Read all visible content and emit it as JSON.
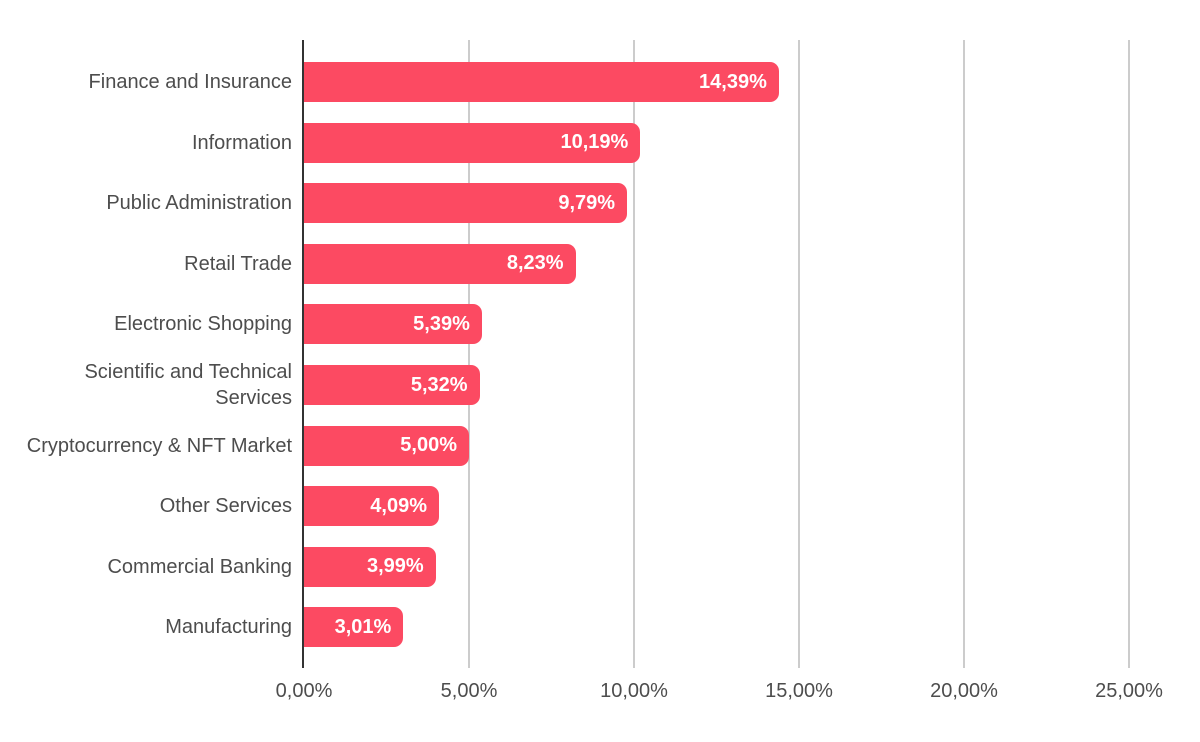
{
  "chart_data": {
    "type": "bar",
    "orientation": "horizontal",
    "title": "",
    "categories": [
      "Finance and Insurance",
      "Information",
      "Public Administration",
      "Retail Trade",
      "Electronic Shopping",
      "Scientific and Technical Services",
      "Cryptocurrency & NFT Market",
      "Other Services",
      "Commercial Banking",
      "Manufacturing"
    ],
    "values": [
      14.39,
      10.19,
      9.79,
      8.23,
      5.39,
      5.32,
      5.0,
      4.09,
      3.99,
      3.01
    ],
    "value_labels": [
      "14,39%",
      "10,19%",
      "9,79%",
      "8,23%",
      "5,39%",
      "5,32%",
      "5,00%",
      "4,09%",
      "3,99%",
      "3,01%"
    ],
    "x_axis": {
      "tick_values": [
        0,
        5,
        10,
        15,
        20,
        25
      ],
      "tick_labels": [
        "0,00%",
        "5,00%",
        "10,00%",
        "15,00%",
        "20,00%",
        "25,00%"
      ],
      "range": [
        0,
        25
      ]
    },
    "legend": "none",
    "grid": "vertical",
    "colors": {
      "bar": "#FC4A62",
      "value_label": "#FFFFFF",
      "category_label": "#4D4D4D",
      "axis_label": "#4D4D4D",
      "gridline": "#CCCCCC",
      "axis_line": "#333333",
      "background": "#FFFFFF"
    }
  }
}
